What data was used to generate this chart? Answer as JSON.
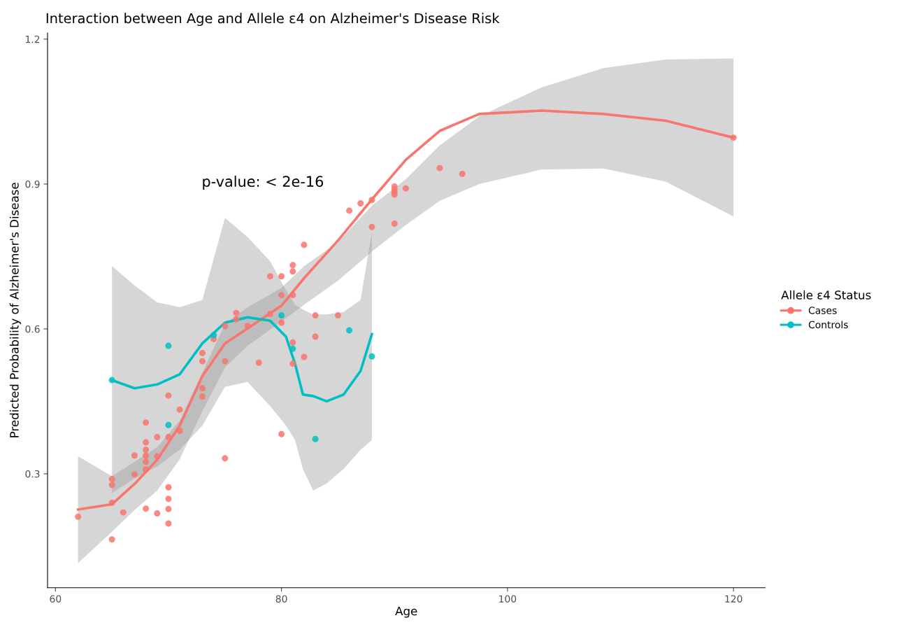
{
  "chart_data": {
    "type": "scatter",
    "title": "Interaction between Age and Allele ε4 on Alzheimer's Disease Risk",
    "xlabel": "Age",
    "ylabel": "Predicted Probability of Alzheimer's Disease",
    "legend_title": "Allele ε4 Status",
    "xlim": [
      59.3,
      122.8
    ],
    "ylim": [
      0.064,
      1.213
    ],
    "xticks": [
      60,
      80,
      100,
      120
    ],
    "yticks": [
      0.3,
      0.6,
      0.9,
      1.2
    ],
    "grid": false,
    "legend": "right",
    "annotations": [
      "p-value: < 2e-16"
    ],
    "series": [
      {
        "type": "line",
        "marker": "none",
        "color": "#f8766d",
        "x": [
          62,
          65,
          67,
          69,
          71,
          73,
          75,
          77,
          80,
          82,
          85,
          88,
          91,
          94,
          97.5,
          103,
          108.5,
          114,
          120
        ],
        "values": [
          0.226,
          0.237,
          0.279,
          0.329,
          0.4,
          0.502,
          0.57,
          0.601,
          0.648,
          0.705,
          0.783,
          0.868,
          0.95,
          1.01,
          1.045,
          1.052,
          1.045,
          1.031,
          0.996
        ],
        "lower": [
          0.115,
          0.18,
          0.225,
          0.265,
          0.33,
          0.43,
          0.52,
          0.565,
          0.615,
          0.65,
          0.7,
          0.76,
          0.815,
          0.865,
          0.9,
          0.93,
          0.932,
          0.905,
          0.833
        ],
        "upper": [
          0.336,
          0.295,
          0.325,
          0.355,
          0.41,
          0.51,
          0.61,
          0.645,
          0.685,
          0.73,
          0.78,
          0.855,
          0.91,
          0.98,
          1.04,
          1.1,
          1.14,
          1.158,
          1.16
        ]
      },
      {
        "type": "line",
        "marker": "none",
        "color": "#00bfc4",
        "x": [
          65,
          67,
          69,
          71,
          73,
          75,
          77,
          79,
          80.4,
          81.2,
          81.9,
          82.8,
          84,
          85.5,
          87,
          88
        ],
        "values": [
          0.494,
          0.477,
          0.485,
          0.506,
          0.57,
          0.613,
          0.624,
          0.617,
          0.584,
          0.528,
          0.464,
          0.461,
          0.45,
          0.464,
          0.513,
          0.589
        ],
        "lower": [
          0.26,
          0.29,
          0.315,
          0.35,
          0.4,
          0.48,
          0.49,
          0.44,
          0.4,
          0.37,
          0.31,
          0.265,
          0.28,
          0.31,
          0.35,
          0.37
        ],
        "upper": [
          0.73,
          0.69,
          0.655,
          0.645,
          0.66,
          0.83,
          0.79,
          0.74,
          0.68,
          0.65,
          0.64,
          0.63,
          0.63,
          0.635,
          0.66,
          0.8
        ]
      },
      {
        "name": "Cases",
        "marker": "circle",
        "color": "#f8766d",
        "x": [
          62,
          65,
          65,
          65,
          65,
          66,
          67,
          67,
          68,
          68,
          68,
          68,
          68,
          68,
          68,
          69,
          69,
          69,
          70,
          70,
          70,
          70,
          70,
          70,
          71,
          71,
          73,
          73,
          73,
          73,
          74,
          75,
          75,
          75,
          76,
          76,
          77,
          78,
          79,
          79,
          80,
          80,
          80,
          80,
          81,
          81,
          81,
          81,
          81,
          82,
          82,
          83,
          83,
          85,
          86,
          87,
          88,
          88,
          90,
          90,
          90,
          90,
          90,
          91,
          94,
          96,
          120
        ],
        "values": [
          0.211,
          0.164,
          0.24,
          0.277,
          0.289,
          0.22,
          0.299,
          0.338,
          0.228,
          0.309,
          0.325,
          0.338,
          0.35,
          0.365,
          0.406,
          0.218,
          0.336,
          0.376,
          0.197,
          0.227,
          0.248,
          0.272,
          0.376,
          0.462,
          0.433,
          0.389,
          0.46,
          0.477,
          0.533,
          0.55,
          0.579,
          0.332,
          0.533,
          0.606,
          0.633,
          0.62,
          0.606,
          0.53,
          0.631,
          0.709,
          0.709,
          0.67,
          0.613,
          0.382,
          0.732,
          0.719,
          0.67,
          0.572,
          0.528,
          0.774,
          0.542,
          0.628,
          0.584,
          0.628,
          0.845,
          0.86,
          0.867,
          0.811,
          0.895,
          0.889,
          0.884,
          0.878,
          0.818,
          0.891,
          0.933,
          0.921,
          0.996
        ]
      },
      {
        "name": "Controls",
        "marker": "circle",
        "color": "#00bfc4",
        "x": [
          65,
          70,
          70,
          74,
          80,
          81,
          83,
          86,
          88
        ],
        "values": [
          0.494,
          0.565,
          0.401,
          0.587,
          0.628,
          0.559,
          0.372,
          0.597,
          0.543
        ]
      }
    ]
  }
}
